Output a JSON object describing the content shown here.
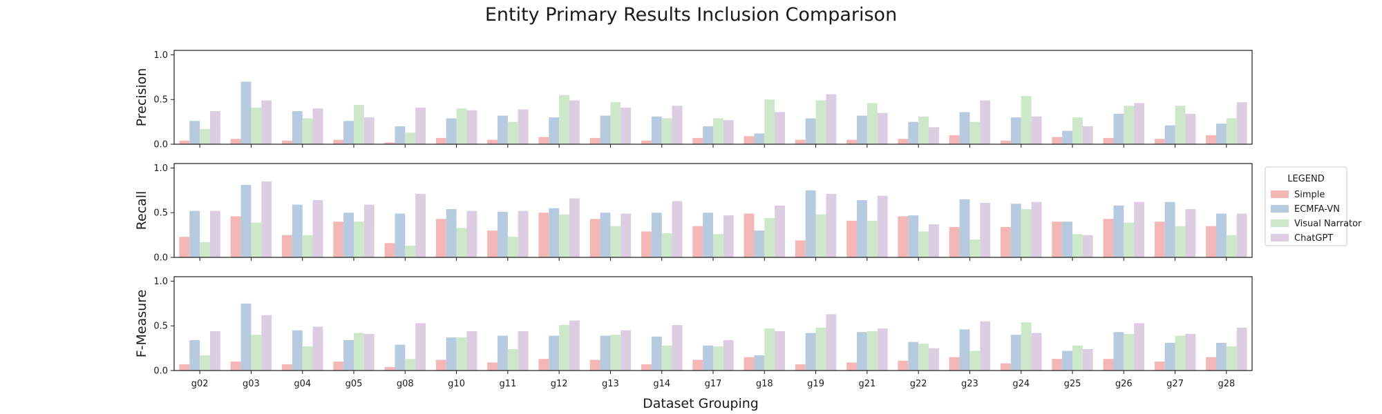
{
  "title": "Entity Primary Results Inclusion Comparison",
  "xlabel": "Dataset Grouping",
  "legend": {
    "title": "LEGEND",
    "position": "right",
    "entries": [
      "Simple",
      "ECMFA-VN",
      "Visual Narrator",
      "ChatGPT"
    ]
  },
  "colors": {
    "Simple": "#f4b7b5",
    "ECMFA-VN": "#b6cbe0",
    "Visual Narrator": "#cce8c9",
    "ChatGPT": "#dccde3"
  },
  "chart_data": [
    {
      "type": "bar",
      "ylabel": "Precision",
      "ylim": [
        0,
        1.05
      ],
      "yticks": [
        "0.0",
        "0.5",
        "1.0"
      ],
      "categories": [
        "g02",
        "g03",
        "g04",
        "g05",
        "g08",
        "g10",
        "g11",
        "g12",
        "g13",
        "g14",
        "g17",
        "g18",
        "g19",
        "g21",
        "g22",
        "g23",
        "g24",
        "g25",
        "g26",
        "g27",
        "g28"
      ],
      "series": [
        {
          "name": "Simple",
          "values": [
            0.04,
            0.06,
            0.04,
            0.05,
            0.02,
            0.07,
            0.05,
            0.08,
            0.07,
            0.04,
            0.07,
            0.09,
            0.05,
            0.05,
            0.06,
            0.1,
            0.04,
            0.08,
            0.07,
            0.06,
            0.1
          ]
        },
        {
          "name": "ECMFA-VN",
          "values": [
            0.26,
            0.7,
            0.37,
            0.26,
            0.2,
            0.29,
            0.32,
            0.3,
            0.32,
            0.31,
            0.2,
            0.12,
            0.29,
            0.32,
            0.25,
            0.36,
            0.3,
            0.15,
            0.34,
            0.21,
            0.23
          ]
        },
        {
          "name": "Visual Narrator",
          "values": [
            0.17,
            0.41,
            0.29,
            0.44,
            0.13,
            0.4,
            0.25,
            0.55,
            0.47,
            0.29,
            0.29,
            0.5,
            0.49,
            0.46,
            0.31,
            0.25,
            0.54,
            0.3,
            0.43,
            0.43,
            0.29
          ]
        },
        {
          "name": "ChatGPT",
          "values": [
            0.37,
            0.49,
            0.4,
            0.3,
            0.41,
            0.38,
            0.39,
            0.49,
            0.41,
            0.43,
            0.27,
            0.36,
            0.56,
            0.35,
            0.19,
            0.49,
            0.31,
            0.2,
            0.46,
            0.34,
            0.47
          ]
        }
      ]
    },
    {
      "type": "bar",
      "ylabel": "Recall",
      "ylim": [
        0,
        1.05
      ],
      "yticks": [
        "0.0",
        "0.5",
        "1.0"
      ],
      "categories": [
        "g02",
        "g03",
        "g04",
        "g05",
        "g08",
        "g10",
        "g11",
        "g12",
        "g13",
        "g14",
        "g17",
        "g18",
        "g19",
        "g21",
        "g22",
        "g23",
        "g24",
        "g25",
        "g26",
        "g27",
        "g28"
      ],
      "series": [
        {
          "name": "Simple",
          "values": [
            0.23,
            0.46,
            0.25,
            0.4,
            0.16,
            0.43,
            0.3,
            0.5,
            0.43,
            0.29,
            0.35,
            0.49,
            0.19,
            0.41,
            0.46,
            0.34,
            0.34,
            0.4,
            0.43,
            0.4,
            0.35
          ]
        },
        {
          "name": "ECMFA-VN",
          "values": [
            0.52,
            0.81,
            0.59,
            0.5,
            0.49,
            0.54,
            0.51,
            0.55,
            0.5,
            0.5,
            0.5,
            0.3,
            0.75,
            0.64,
            0.47,
            0.65,
            0.6,
            0.4,
            0.58,
            0.62,
            0.49
          ]
        },
        {
          "name": "Visual Narrator",
          "values": [
            0.17,
            0.39,
            0.25,
            0.4,
            0.13,
            0.33,
            0.23,
            0.48,
            0.35,
            0.27,
            0.26,
            0.44,
            0.48,
            0.41,
            0.29,
            0.2,
            0.54,
            0.26,
            0.39,
            0.35,
            0.25
          ]
        },
        {
          "name": "ChatGPT",
          "values": [
            0.52,
            0.85,
            0.64,
            0.59,
            0.71,
            0.52,
            0.52,
            0.66,
            0.49,
            0.63,
            0.47,
            0.58,
            0.71,
            0.69,
            0.37,
            0.61,
            0.62,
            0.25,
            0.62,
            0.54,
            0.49
          ]
        }
      ]
    },
    {
      "type": "bar",
      "ylabel": "F-Measure",
      "ylim": [
        0,
        1.05
      ],
      "yticks": [
        "0.0",
        "0.5",
        "1.0"
      ],
      "categories": [
        "g02",
        "g03",
        "g04",
        "g05",
        "g08",
        "g10",
        "g11",
        "g12",
        "g13",
        "g14",
        "g17",
        "g18",
        "g19",
        "g21",
        "g22",
        "g23",
        "g24",
        "g25",
        "g26",
        "g27",
        "g28"
      ],
      "series": [
        {
          "name": "Simple",
          "values": [
            0.07,
            0.1,
            0.07,
            0.1,
            0.04,
            0.12,
            0.09,
            0.13,
            0.12,
            0.07,
            0.12,
            0.15,
            0.07,
            0.09,
            0.11,
            0.15,
            0.08,
            0.13,
            0.13,
            0.1,
            0.15
          ]
        },
        {
          "name": "ECMFA-VN",
          "values": [
            0.34,
            0.75,
            0.45,
            0.34,
            0.29,
            0.37,
            0.39,
            0.39,
            0.39,
            0.38,
            0.28,
            0.17,
            0.42,
            0.43,
            0.32,
            0.46,
            0.4,
            0.22,
            0.43,
            0.31,
            0.31
          ]
        },
        {
          "name": "Visual Narrator",
          "values": [
            0.17,
            0.4,
            0.27,
            0.42,
            0.13,
            0.37,
            0.24,
            0.51,
            0.4,
            0.28,
            0.27,
            0.47,
            0.48,
            0.44,
            0.3,
            0.22,
            0.54,
            0.28,
            0.41,
            0.39,
            0.27
          ]
        },
        {
          "name": "ChatGPT",
          "values": [
            0.44,
            0.62,
            0.49,
            0.41,
            0.53,
            0.44,
            0.44,
            0.56,
            0.45,
            0.51,
            0.34,
            0.44,
            0.63,
            0.47,
            0.25,
            0.55,
            0.42,
            0.24,
            0.53,
            0.41,
            0.48
          ]
        }
      ]
    }
  ]
}
